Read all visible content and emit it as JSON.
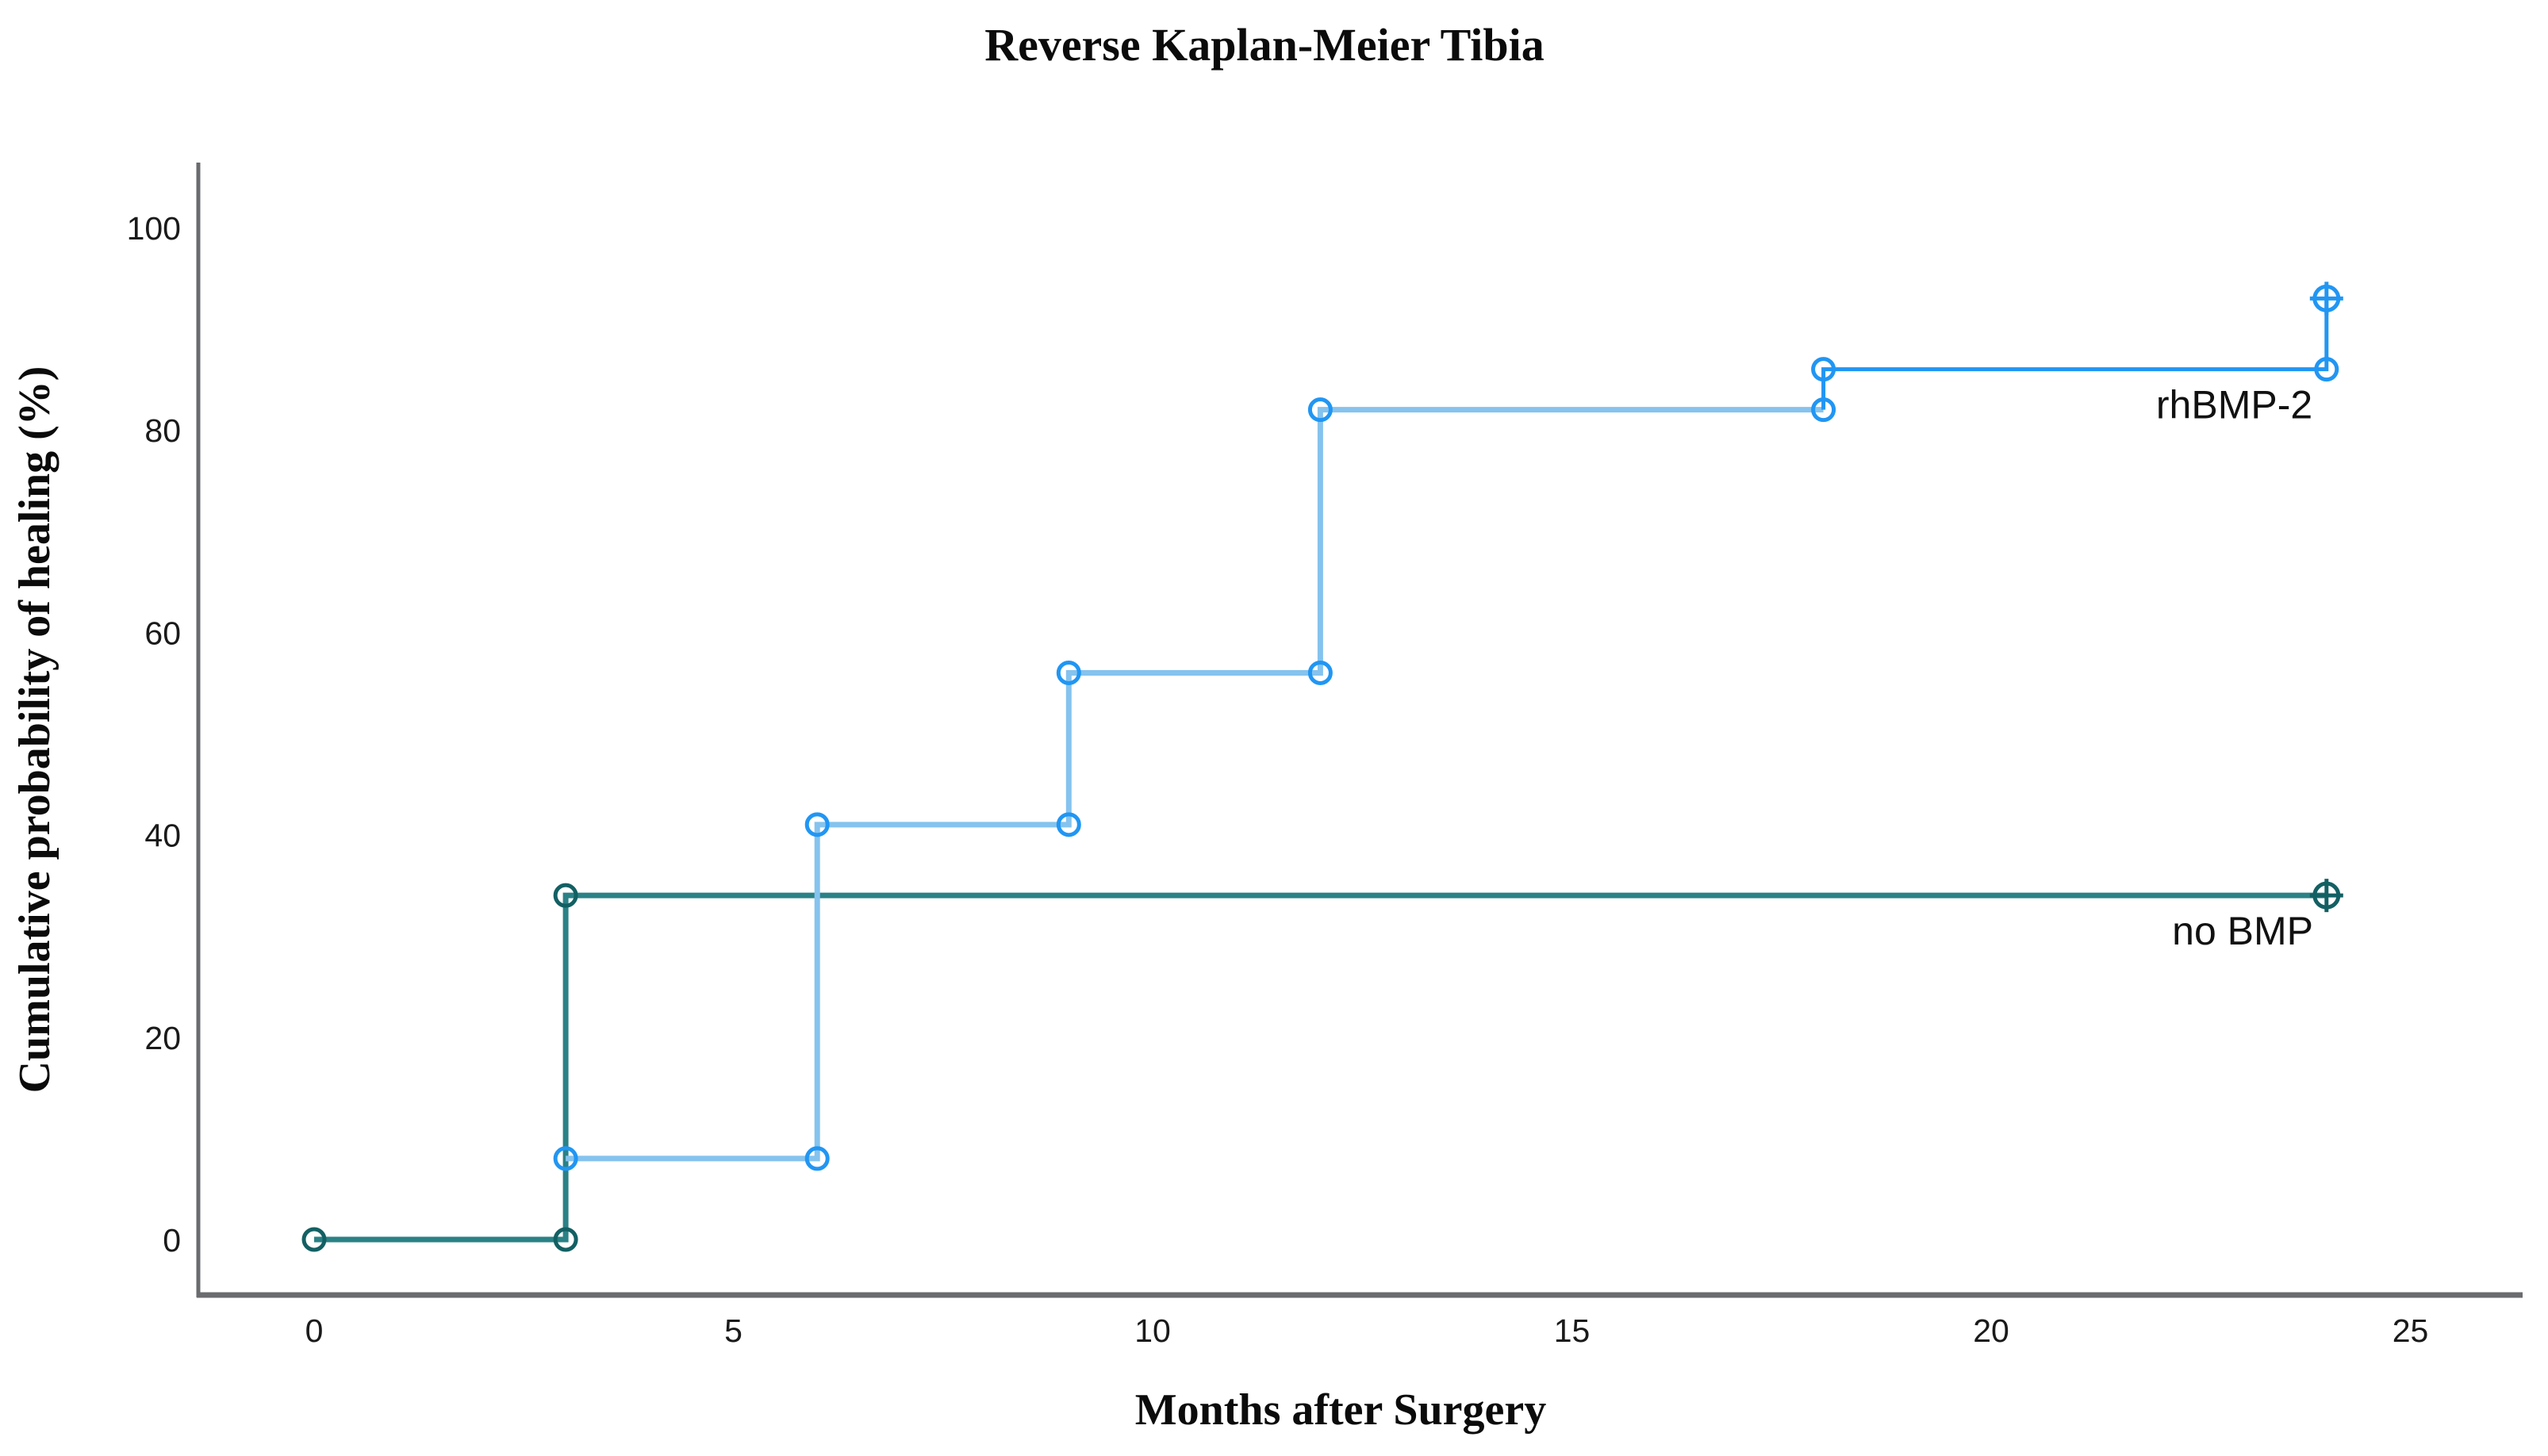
{
  "title": "Reverse Kaplan-Meier Tibia",
  "chart_data": {
    "type": "line",
    "subtype": "kaplan_meier_step",
    "title": "Reverse Kaplan-Meier Tibia",
    "xlabel": "Months after Surgery",
    "ylabel": "Cumulative probability of healing (%)",
    "xlim": [
      0,
      26
    ],
    "ylim": [
      0,
      100
    ],
    "x_ticks": [
      0,
      5,
      10,
      15,
      20,
      25
    ],
    "y_ticks": [
      0,
      20,
      40,
      60,
      80,
      100
    ],
    "grid": false,
    "legend_position": "inline-right-of-plot",
    "axis_color": "#6a6b6e",
    "series": [
      {
        "name": "no BMP",
        "label": "no BMP",
        "line_color": "#2A8186",
        "marker_color": "#136063",
        "points": [
          [
            0,
            0
          ],
          [
            3,
            0
          ],
          [
            3,
            34
          ],
          [
            24,
            34
          ]
        ],
        "markers": [
          [
            0,
            0
          ],
          [
            3,
            0
          ],
          [
            3,
            34
          ]
        ],
        "censored": [
          [
            24,
            34
          ]
        ],
        "label_anchor_point": [
          23.0,
          34
        ],
        "label_offset": "below-line"
      },
      {
        "name": "rhBMP-2",
        "label": "rhBMP-2",
        "line_color": "#85C3EE",
        "accent_color": "#2196F3",
        "accent_from_point_index": 7,
        "points": [
          [
            3,
            8
          ],
          [
            6,
            8
          ],
          [
            6,
            41
          ],
          [
            9,
            41
          ],
          [
            9,
            56
          ],
          [
            12,
            56
          ],
          [
            12,
            82
          ],
          [
            18,
            82
          ],
          [
            18,
            86
          ],
          [
            24,
            86
          ],
          [
            24,
            93
          ]
        ],
        "markers": [
          [
            3,
            8
          ],
          [
            6,
            8
          ],
          [
            6,
            41
          ],
          [
            9,
            41
          ],
          [
            9,
            56
          ],
          [
            12,
            56
          ],
          [
            12,
            82
          ],
          [
            18,
            82
          ],
          [
            18,
            86
          ],
          [
            24,
            86
          ]
        ],
        "censored": [
          [
            24,
            93
          ]
        ],
        "label_anchor_point": [
          22.9,
          86
        ],
        "label_offset": "below-line"
      }
    ]
  }
}
